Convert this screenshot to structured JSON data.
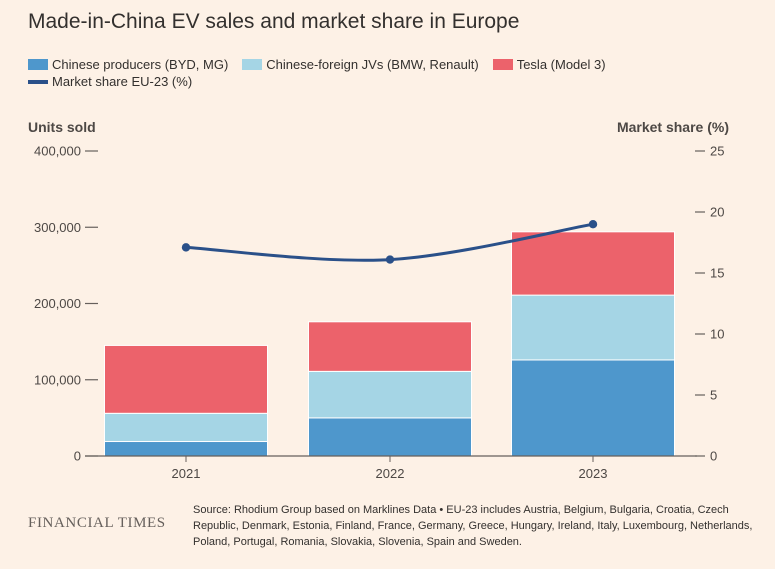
{
  "title": "Made-in-China EV sales and market share in Europe",
  "source": "Source: Rhodium Group based on Marklines Data • EU-23 includes Austria, Belgium, Bulgaria, Croatia, Czech Republic, Denmark, Estonia, Finland, France, Germany, Greece, Hungary, Ireland, Italy, Luxembourg, Netherlands, Poland, Portugal, Romania, Slovakia, Slovenia, Spain and Sweden.",
  "logo": "FINANCIAL TIMES",
  "chart_data": {
    "type": "bar",
    "stacked": true,
    "categories": [
      "2021",
      "2022",
      "2023"
    ],
    "series": [
      {
        "name": "Chinese producers (BYD, MG)",
        "color": "#4e97cc",
        "values": [
          19000,
          50000,
          126000
        ]
      },
      {
        "name": "Chinese-foreign JVs (BMW, Renault)",
        "color": "#a5d5e5",
        "values": [
          37000,
          61000,
          85000
        ]
      },
      {
        "name": "Tesla (Model 3)",
        "color": "#ec626b",
        "values": [
          89000,
          65000,
          83000
        ]
      }
    ],
    "line_series": {
      "name": "Market share EU-23 (%)",
      "color": "#2a5089",
      "axis": "right",
      "values": [
        17.1,
        16.1,
        19
      ]
    },
    "ylabel": "Units sold",
    "y2label": "Market share (%)",
    "ylim": [
      0,
      400000
    ],
    "y2lim": [
      0,
      25
    ],
    "yticks": [
      "0",
      "100,000",
      "200,000",
      "300,000",
      "400,000"
    ],
    "y2ticks": [
      "0",
      "5",
      "10",
      "15",
      "20",
      "25"
    ],
    "legend_position": "top-left"
  }
}
